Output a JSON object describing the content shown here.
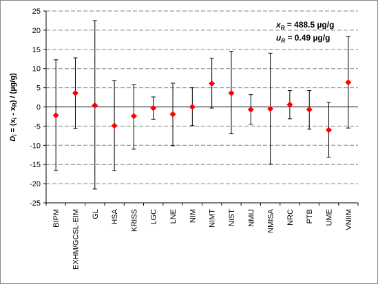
{
  "chart_data": {
    "type": "scatter",
    "error_bars": true,
    "categories": [
      "BIPM",
      "EXHM/GCSL-EIM",
      "GL",
      "HSA",
      "KRISS",
      "LGC",
      "LNE",
      "NIM",
      "NIMT",
      "NIST",
      "NMIJ",
      "NMISA",
      "NRC",
      "PTB",
      "UME",
      "VNIIM"
    ],
    "values": [
      -2.2,
      3.6,
      0.4,
      -4.9,
      -2.4,
      -0.3,
      -1.9,
      0.0,
      6.1,
      3.6,
      -0.7,
      -0.5,
      0.6,
      -0.7,
      -6.0,
      6.4
    ],
    "lower": [
      -16.6,
      -5.6,
      -21.4,
      -16.6,
      -11.0,
      -3.2,
      -10.1,
      -4.9,
      -0.3,
      -7.0,
      -4.5,
      -14.9,
      -3.1,
      -5.8,
      -13.1,
      -5.5
    ],
    "upper": [
      12.3,
      12.8,
      22.5,
      6.8,
      5.8,
      2.6,
      6.2,
      5.0,
      12.7,
      14.5,
      3.2,
      14.0,
      4.3,
      4.3,
      1.2,
      18.3
    ],
    "ylim": [
      -25,
      25
    ],
    "yticks": [
      "25",
      "20",
      "15",
      "10",
      "5",
      "0",
      "-5",
      "-10",
      "-15",
      "-20",
      "-25"
    ],
    "ylabel_parts": [
      "D",
      "i",
      " = (x",
      "i",
      " - x",
      "R",
      ") / (µg/g)"
    ],
    "annotations": [
      {
        "sym": "x",
        "sub": "R",
        "text": " = 488.5  µg/g"
      },
      {
        "sym": "u",
        "sub": "R",
        "text": " = 0.49  µg/g"
      }
    ],
    "grid": true,
    "marker_color": "#ff0000",
    "errorbar_color": "#000000",
    "grid_color": "#808080"
  }
}
